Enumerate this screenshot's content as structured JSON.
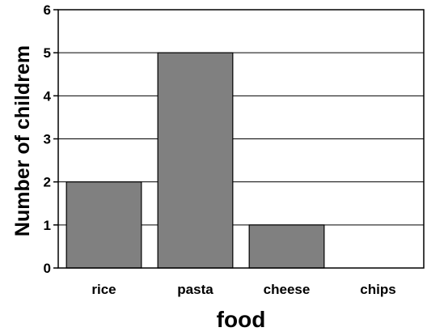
{
  "chart_data": {
    "type": "bar",
    "title": "",
    "xlabel": "food",
    "ylabel": "Number of childrem",
    "categories": [
      "rice",
      "pasta",
      "cheese",
      "chips"
    ],
    "values": [
      2,
      5,
      1,
      0
    ],
    "ylim": [
      0,
      6
    ],
    "yticks": [
      "0",
      "1",
      "2",
      "3",
      "4",
      "5",
      "6"
    ],
    "grid": true,
    "legend": "none",
    "colors": {
      "bar_fill": "#808080",
      "bar_stroke": "#000000",
      "grid": "#000000",
      "axis": "#000000",
      "background": "#ffffff"
    }
  }
}
